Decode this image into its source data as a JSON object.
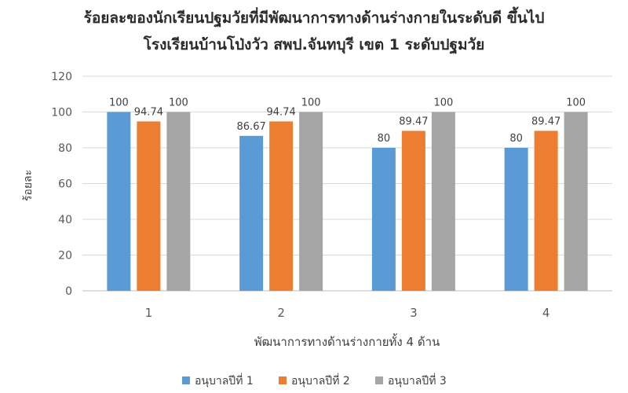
{
  "chart_data": {
    "type": "bar",
    "title": "ร้อยละของนักเรียนปฐมวัยที่มีพัฒนาการทางด้านร่างกายในระดับดี ขึ้นไป",
    "subtitle": "โรงเรียนบ้านโป่งวัว สพป.จันทบุรี เขต 1 ระดับปฐมวัย",
    "xlabel": "พัฒนาการทางด้านร่างกายทั้ง  4 ด้าน",
    "ylabel": "ร้อยละ",
    "ylim": [
      0,
      120
    ],
    "yticks": [
      "0",
      "20",
      "40",
      "60",
      "80",
      "100",
      "120"
    ],
    "categories": [
      "1",
      "2",
      "3",
      "4"
    ],
    "series": [
      {
        "name": "อนุบาลปีที่  1",
        "color": "#5B9BD5",
        "values": [
          100,
          86.67,
          80,
          80
        ],
        "labels": [
          "100",
          "86.67",
          "80",
          "80"
        ]
      },
      {
        "name": "อนุบาลปีที่  2",
        "color": "#ED7D31",
        "values": [
          94.74,
          94.74,
          89.47,
          89.47
        ],
        "labels": [
          "94.74",
          "94.74",
          "89.47",
          "89.47"
        ]
      },
      {
        "name": "อนุบาลปีที่  3",
        "color": "#A5A5A5",
        "values": [
          100,
          100,
          100,
          100
        ],
        "labels": [
          "100",
          "100",
          "100",
          "100"
        ]
      }
    ],
    "grid": true,
    "legend_position": "bottom"
  }
}
